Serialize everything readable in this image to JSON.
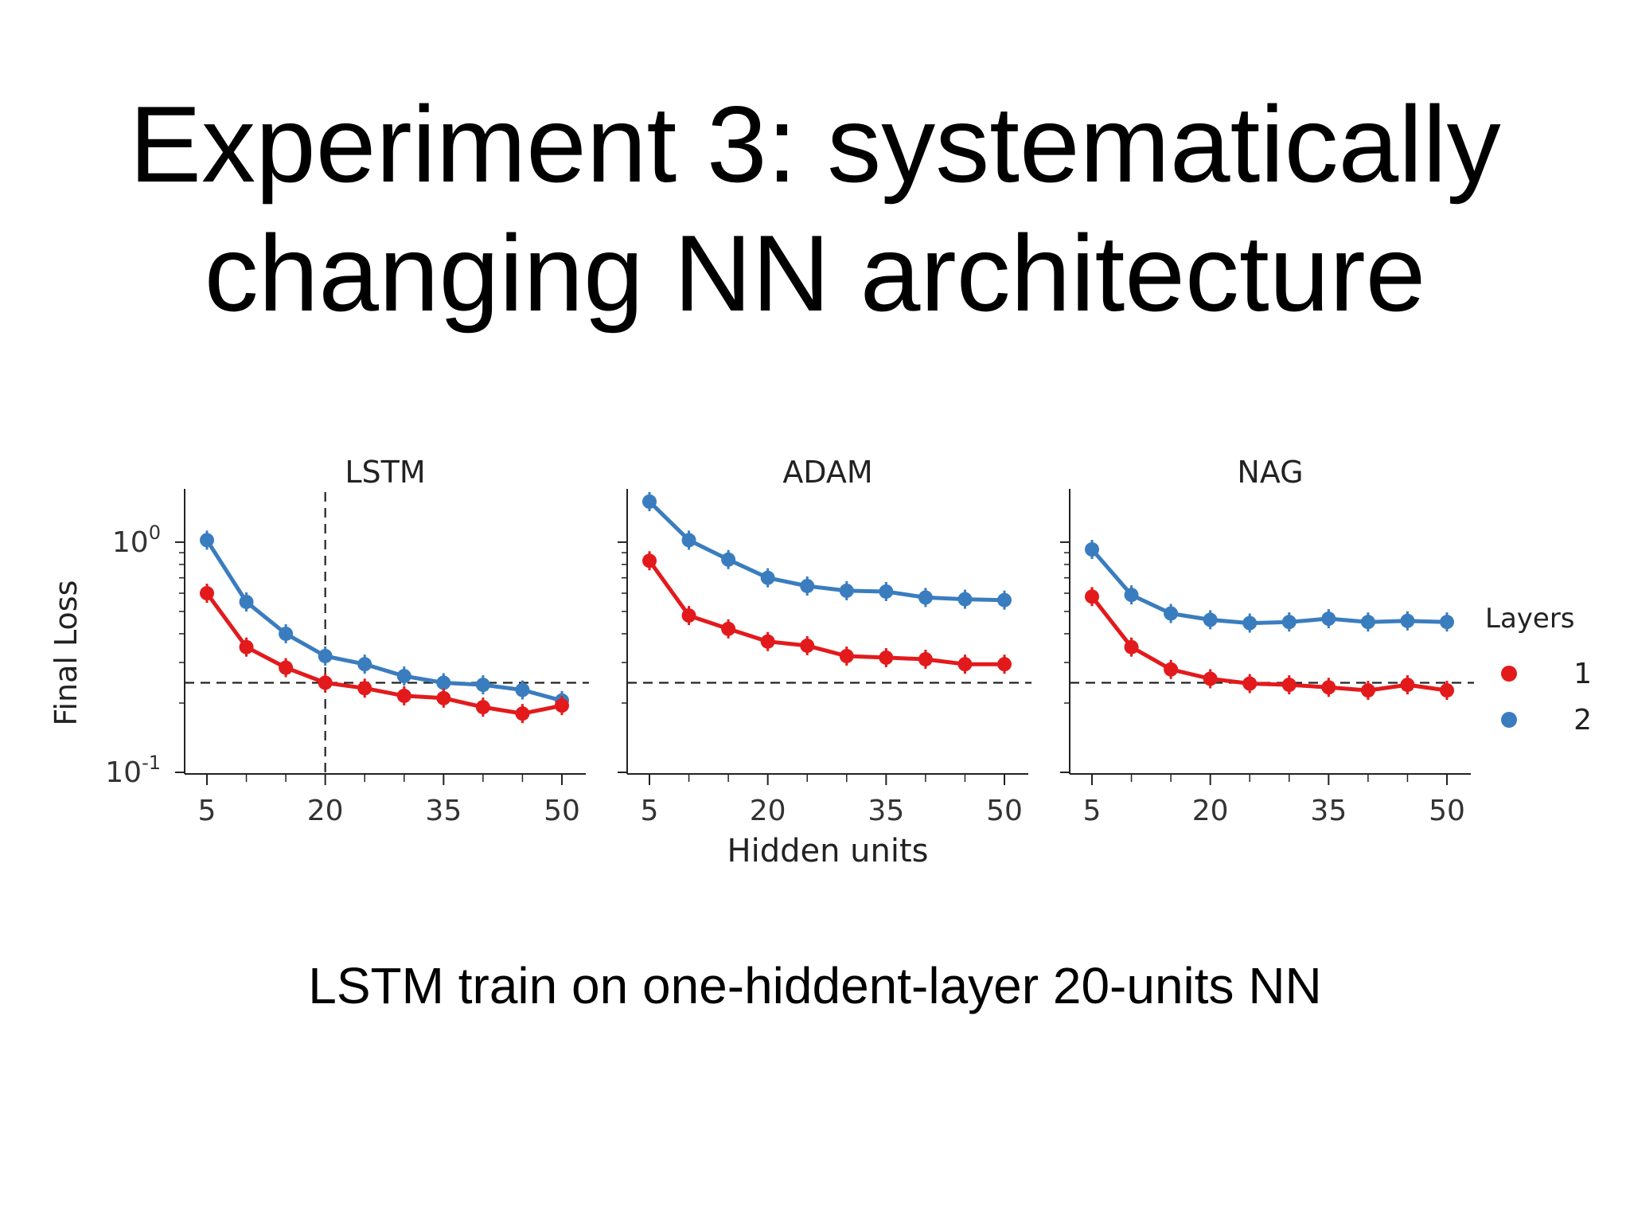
{
  "slide": {
    "title_lines": [
      "Experiment 3: systematically",
      "changing NN architecture"
    ],
    "caption": "LSTM train on one-hiddent-layer 20-units NN"
  },
  "chart_data": {
    "type": "line",
    "shared_xlabel": "Hidden units",
    "shared_ylabel": "Final Loss",
    "y_scale": "log",
    "ylim": [
      0.1,
      1.5
    ],
    "y_ticks": [
      {
        "value": 1,
        "base": "10",
        "exp": "0"
      },
      {
        "value": 0.1,
        "base": "10",
        "exp": "-1"
      }
    ],
    "x_ticks": [
      5,
      20,
      35,
      50
    ],
    "x_minor_ticks": [
      10,
      15,
      25,
      30,
      40,
      45
    ],
    "xlim": [
      3,
      53
    ],
    "reference_line_y": 0.245,
    "legend": {
      "title": "Layers",
      "placement": "right",
      "entries": [
        "1",
        "2"
      ]
    },
    "colors": {
      "layer_1": "#e31a1c",
      "layer_2": "#3a7dbf"
    },
    "panels": [
      {
        "title": "LSTM",
        "x": [
          5,
          10,
          15,
          20,
          25,
          30,
          35,
          40,
          45,
          50
        ],
        "vline_x": 20,
        "series": [
          {
            "name": "1",
            "values": [
              0.6,
              0.35,
              0.285,
              0.245,
              0.232,
              0.215,
              0.21,
              0.192,
              0.18,
              0.195
            ]
          },
          {
            "name": "2",
            "values": [
              1.02,
              0.55,
              0.4,
              0.32,
              0.295,
              0.262,
              0.245,
              0.24,
              0.228,
              0.205
            ]
          }
        ]
      },
      {
        "title": "ADAM",
        "x": [
          5,
          10,
          15,
          20,
          25,
          30,
          35,
          40,
          45,
          50
        ],
        "series": [
          {
            "name": "1",
            "values": [
              0.83,
              0.48,
              0.42,
              0.37,
              0.355,
              0.32,
              0.315,
              0.31,
              0.295,
              0.295
            ]
          },
          {
            "name": "2",
            "values": [
              1.5,
              1.02,
              0.84,
              0.7,
              0.645,
              0.615,
              0.61,
              0.575,
              0.565,
              0.56
            ]
          }
        ]
      },
      {
        "title": "NAG",
        "x": [
          5,
          10,
          15,
          20,
          25,
          30,
          35,
          40,
          45,
          50
        ],
        "series": [
          {
            "name": "1",
            "values": [
              0.58,
              0.35,
              0.28,
              0.255,
              0.243,
              0.24,
              0.234,
              0.227,
              0.24,
              0.227
            ]
          },
          {
            "name": "2",
            "values": [
              0.93,
              0.59,
              0.49,
              0.46,
              0.445,
              0.45,
              0.465,
              0.45,
              0.455,
              0.45
            ]
          }
        ]
      }
    ]
  }
}
